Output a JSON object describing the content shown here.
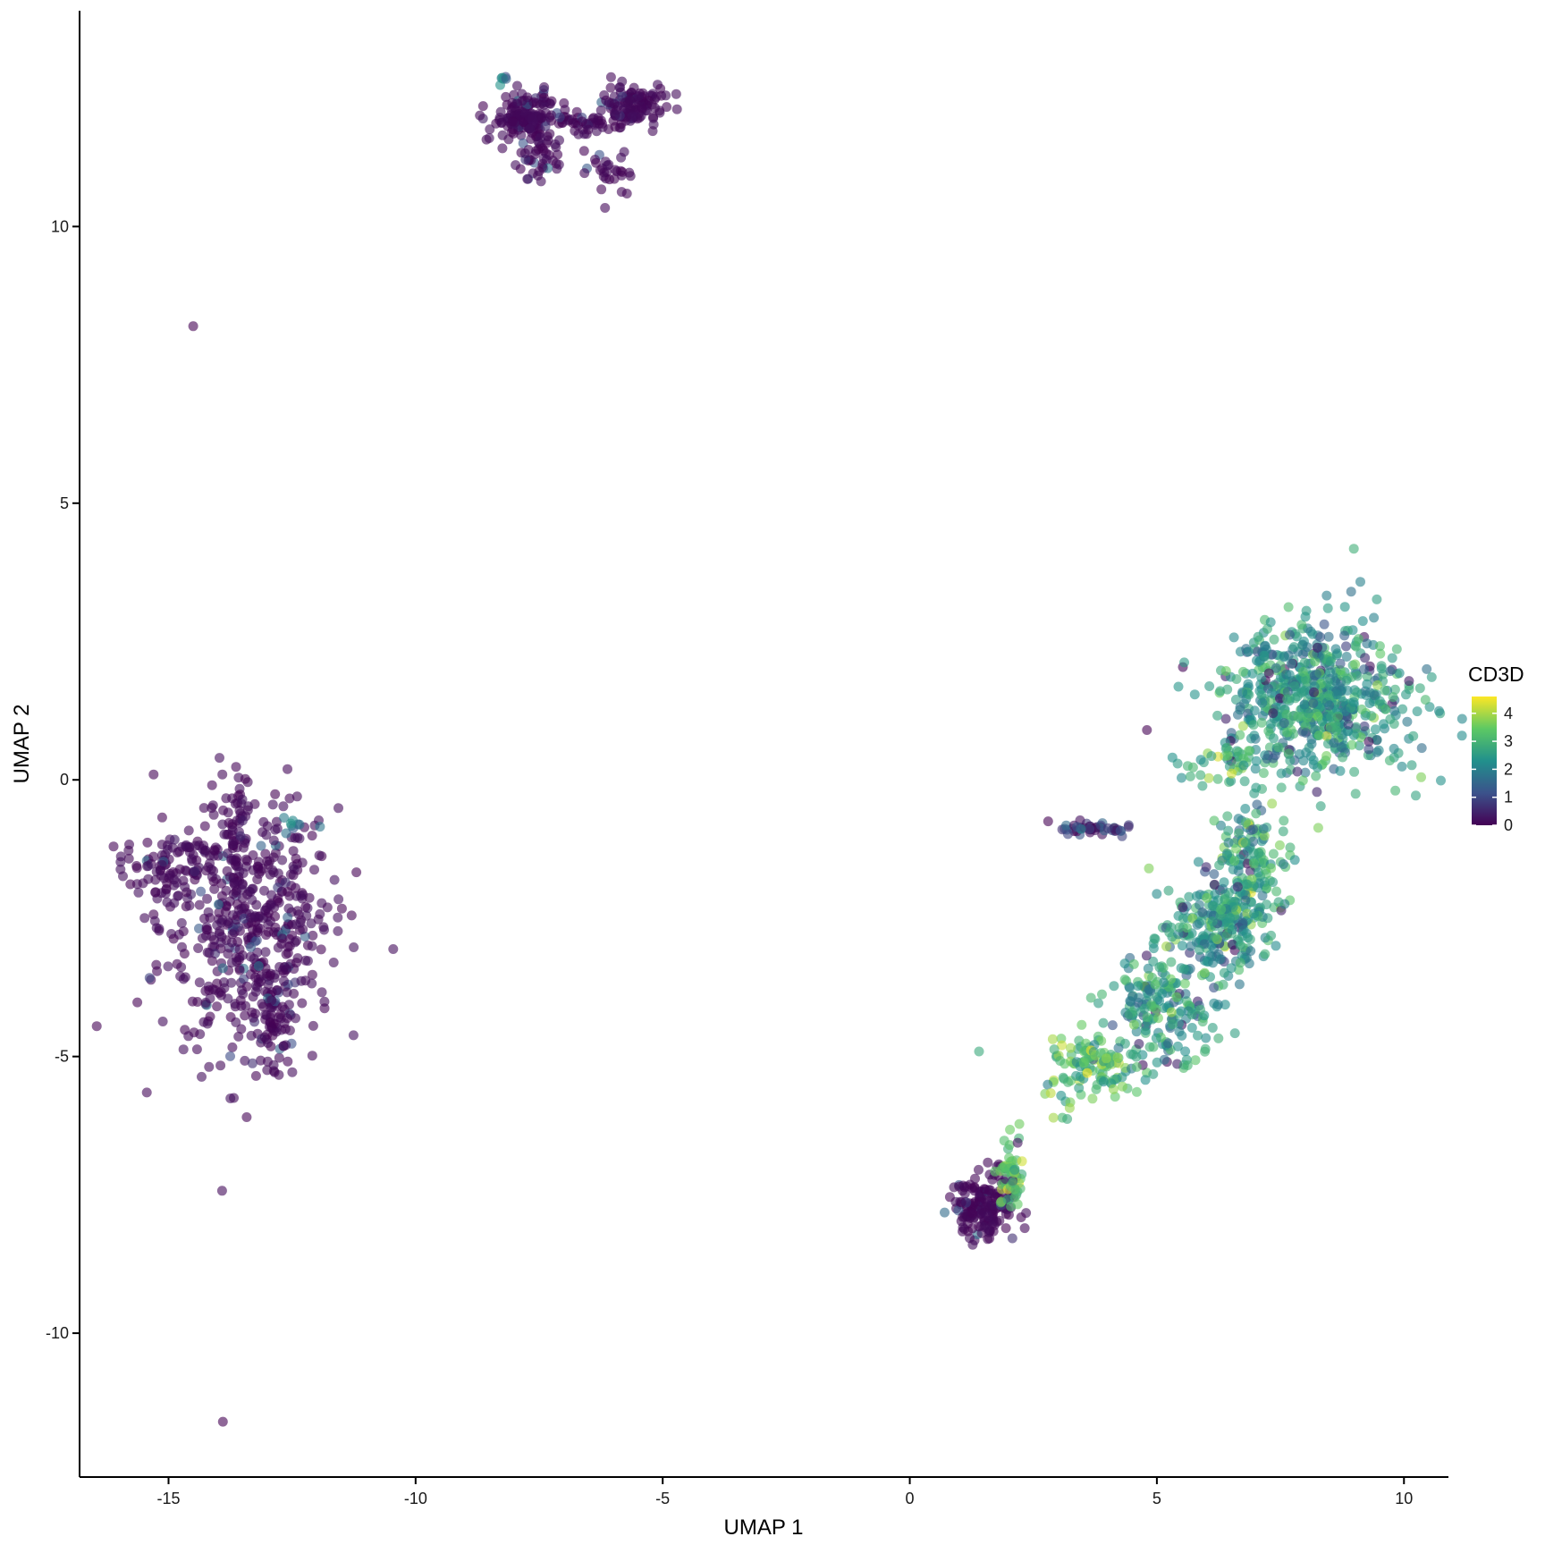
{
  "chart_data": {
    "type": "scatter",
    "title": "",
    "xlabel": "UMAP 1",
    "ylabel": "UMAP 2",
    "xlim": [
      -16.8,
      10.9
    ],
    "ylim": [
      -12.6,
      13.9
    ],
    "x_ticks": [
      -15,
      -10,
      -5,
      0,
      5,
      10
    ],
    "y_ticks": [
      -10,
      -5,
      0,
      5,
      10
    ],
    "grid": false,
    "color_variable": "CD3D",
    "color_scale": {
      "name": "viridis",
      "range": [
        0,
        4.6
      ],
      "ticks": [
        0,
        1,
        2,
        3,
        4
      ],
      "stops": [
        "#440154",
        "#3b528b",
        "#21908c",
        "#5dc963",
        "#fde725"
      ]
    },
    "legend_position": "right",
    "point_alpha": 0.6,
    "clusters": [
      {
        "cx": -13.4,
        "cy": -2.6,
        "sx": 0.9,
        "sy": 1.2,
        "n": 520,
        "value_mean": 0.1
      },
      {
        "cx": -15.0,
        "cy": -1.6,
        "sx": 0.5,
        "sy": 0.3,
        "n": 90,
        "value_mean": 0.1
      },
      {
        "cx": -13.6,
        "cy": -0.8,
        "sx": 0.1,
        "sy": 0.5,
        "n": 40,
        "value_mean": 0.2
      },
      {
        "cx": -12.5,
        "cy": -0.8,
        "sx": 0.1,
        "sy": 0.1,
        "n": 8,
        "value_mean": 1.5
      },
      {
        "cx": -12.9,
        "cy": -4.2,
        "sx": 0.2,
        "sy": 0.4,
        "n": 60,
        "value_mean": 0.1
      },
      {
        "cx": -7.8,
        "cy": 12.0,
        "sx": 0.35,
        "sy": 0.2,
        "n": 140,
        "value_mean": 0.1
      },
      {
        "cx": -5.6,
        "cy": 12.2,
        "sx": 0.3,
        "sy": 0.2,
        "n": 110,
        "value_mean": 0.2
      },
      {
        "cx": -6.6,
        "cy": 11.85,
        "sx": 0.5,
        "sy": 0.12,
        "n": 50,
        "value_mean": 0.1
      },
      {
        "cx": -7.5,
        "cy": 11.2,
        "sx": 0.2,
        "sy": 0.3,
        "n": 50,
        "value_mean": 0.1
      },
      {
        "cx": -6.1,
        "cy": 11.0,
        "sx": 0.2,
        "sy": 0.2,
        "n": 30,
        "value_mean": 0.1
      },
      {
        "cx": -8.2,
        "cy": 12.6,
        "sx": 0.08,
        "sy": 0.08,
        "n": 6,
        "value_mean": 2.0
      },
      {
        "cx": 8.2,
        "cy": 1.5,
        "sx": 0.9,
        "sy": 0.7,
        "n": 650,
        "value_mean": 2.4
      },
      {
        "cx": 6.9,
        "cy": -1.6,
        "sx": 0.35,
        "sy": 0.6,
        "n": 160,
        "value_mean": 2.7
      },
      {
        "cx": 6.2,
        "cy": -2.6,
        "sx": 0.5,
        "sy": 0.4,
        "n": 200,
        "value_mean": 2.4
      },
      {
        "cx": 5.2,
        "cy": -4.0,
        "sx": 0.6,
        "sy": 0.5,
        "n": 200,
        "value_mean": 2.5
      },
      {
        "cx": 3.8,
        "cy": -5.1,
        "sx": 0.5,
        "sy": 0.25,
        "n": 110,
        "value_mean": 3.0
      },
      {
        "cx": 3.1,
        "cy": -5.7,
        "sx": 0.2,
        "sy": 0.2,
        "n": 15,
        "value_mean": 3.3
      },
      {
        "cx": 6.3,
        "cy": 0.3,
        "sx": 0.5,
        "sy": 0.2,
        "n": 40,
        "value_mean": 2.9
      },
      {
        "cx": 3.7,
        "cy": -0.9,
        "sx": 0.45,
        "sy": 0.06,
        "n": 45,
        "value_mean": 0.8
      },
      {
        "cx": 1.5,
        "cy": -7.7,
        "sx": 0.3,
        "sy": 0.3,
        "n": 170,
        "value_mean": 0.1
      },
      {
        "cx": 2.05,
        "cy": -7.1,
        "sx": 0.12,
        "sy": 0.35,
        "n": 60,
        "value_mean": 3.4
      }
    ],
    "singletons": [
      {
        "x": -14.5,
        "y": 8.2,
        "v": 0.0
      },
      {
        "x": -13.9,
        "y": -11.6,
        "v": 0.0
      },
      {
        "x": 4.8,
        "y": 0.9,
        "v": 0.0
      },
      {
        "x": 2.8,
        "y": -0.75,
        "v": 0.0
      }
    ]
  }
}
